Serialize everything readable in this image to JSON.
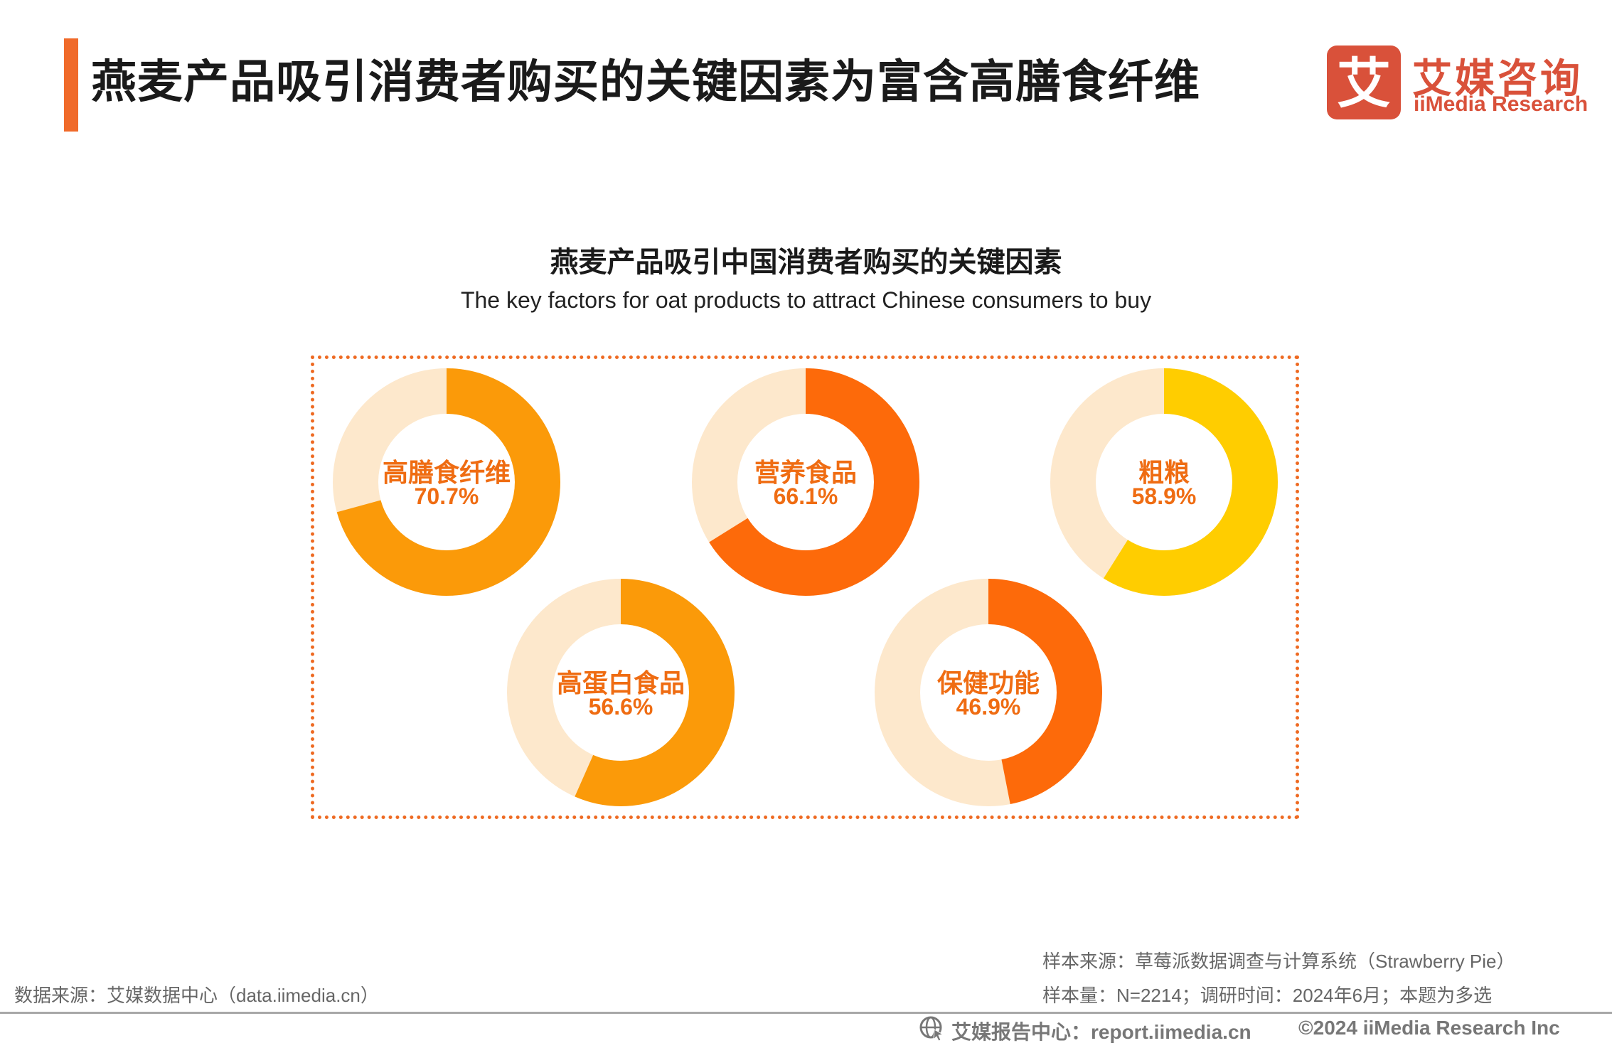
{
  "header": {
    "title": "燕麦产品吸引消费者购买的关键因素为富含高膳食纤维",
    "accent_color": "#f06a2a"
  },
  "logo": {
    "glyph": "艾",
    "name_cn": "艾媒咨询",
    "name_en": "iiMedia Research",
    "color": "#d9513a"
  },
  "chart_data": {
    "type": "pie",
    "variant": "donut",
    "title": "燕麦产品吸引中国消费者购买的关键因素",
    "subtitle": "The key factors for oat products to attract Chinese consumers to buy",
    "unit": "%",
    "track_color": "#fde8cc",
    "label_color": "#ef6c12",
    "items": [
      {
        "label": "高膳食纤维",
        "value": 70.7,
        "value_label": "70.7%",
        "color": "#fb9a09"
      },
      {
        "label": "营养食品",
        "value": 66.1,
        "value_label": "66.1%",
        "color": "#fd6a0a"
      },
      {
        "label": "粗粮",
        "value": 58.9,
        "value_label": "58.9%",
        "color": "#ffcd00"
      },
      {
        "label": "高蛋白食品",
        "value": 56.6,
        "value_label": "56.6%",
        "color": "#fb9a09"
      },
      {
        "label": "保健功能",
        "value": 46.9,
        "value_label": "46.9%",
        "color": "#fd6a0a"
      }
    ]
  },
  "footer": {
    "data_source": "数据来源：艾媒数据中心（data.iimedia.cn）",
    "sample_source": "样本来源：草莓派数据调查与计算系统（Strawberry Pie）",
    "sample_info": "样本量：N=2214；调研时间：2024年6月；本题为多选",
    "report_center": "艾媒报告中心：report.iimedia.cn",
    "copyright": "©2024  iiMedia Research Inc"
  }
}
